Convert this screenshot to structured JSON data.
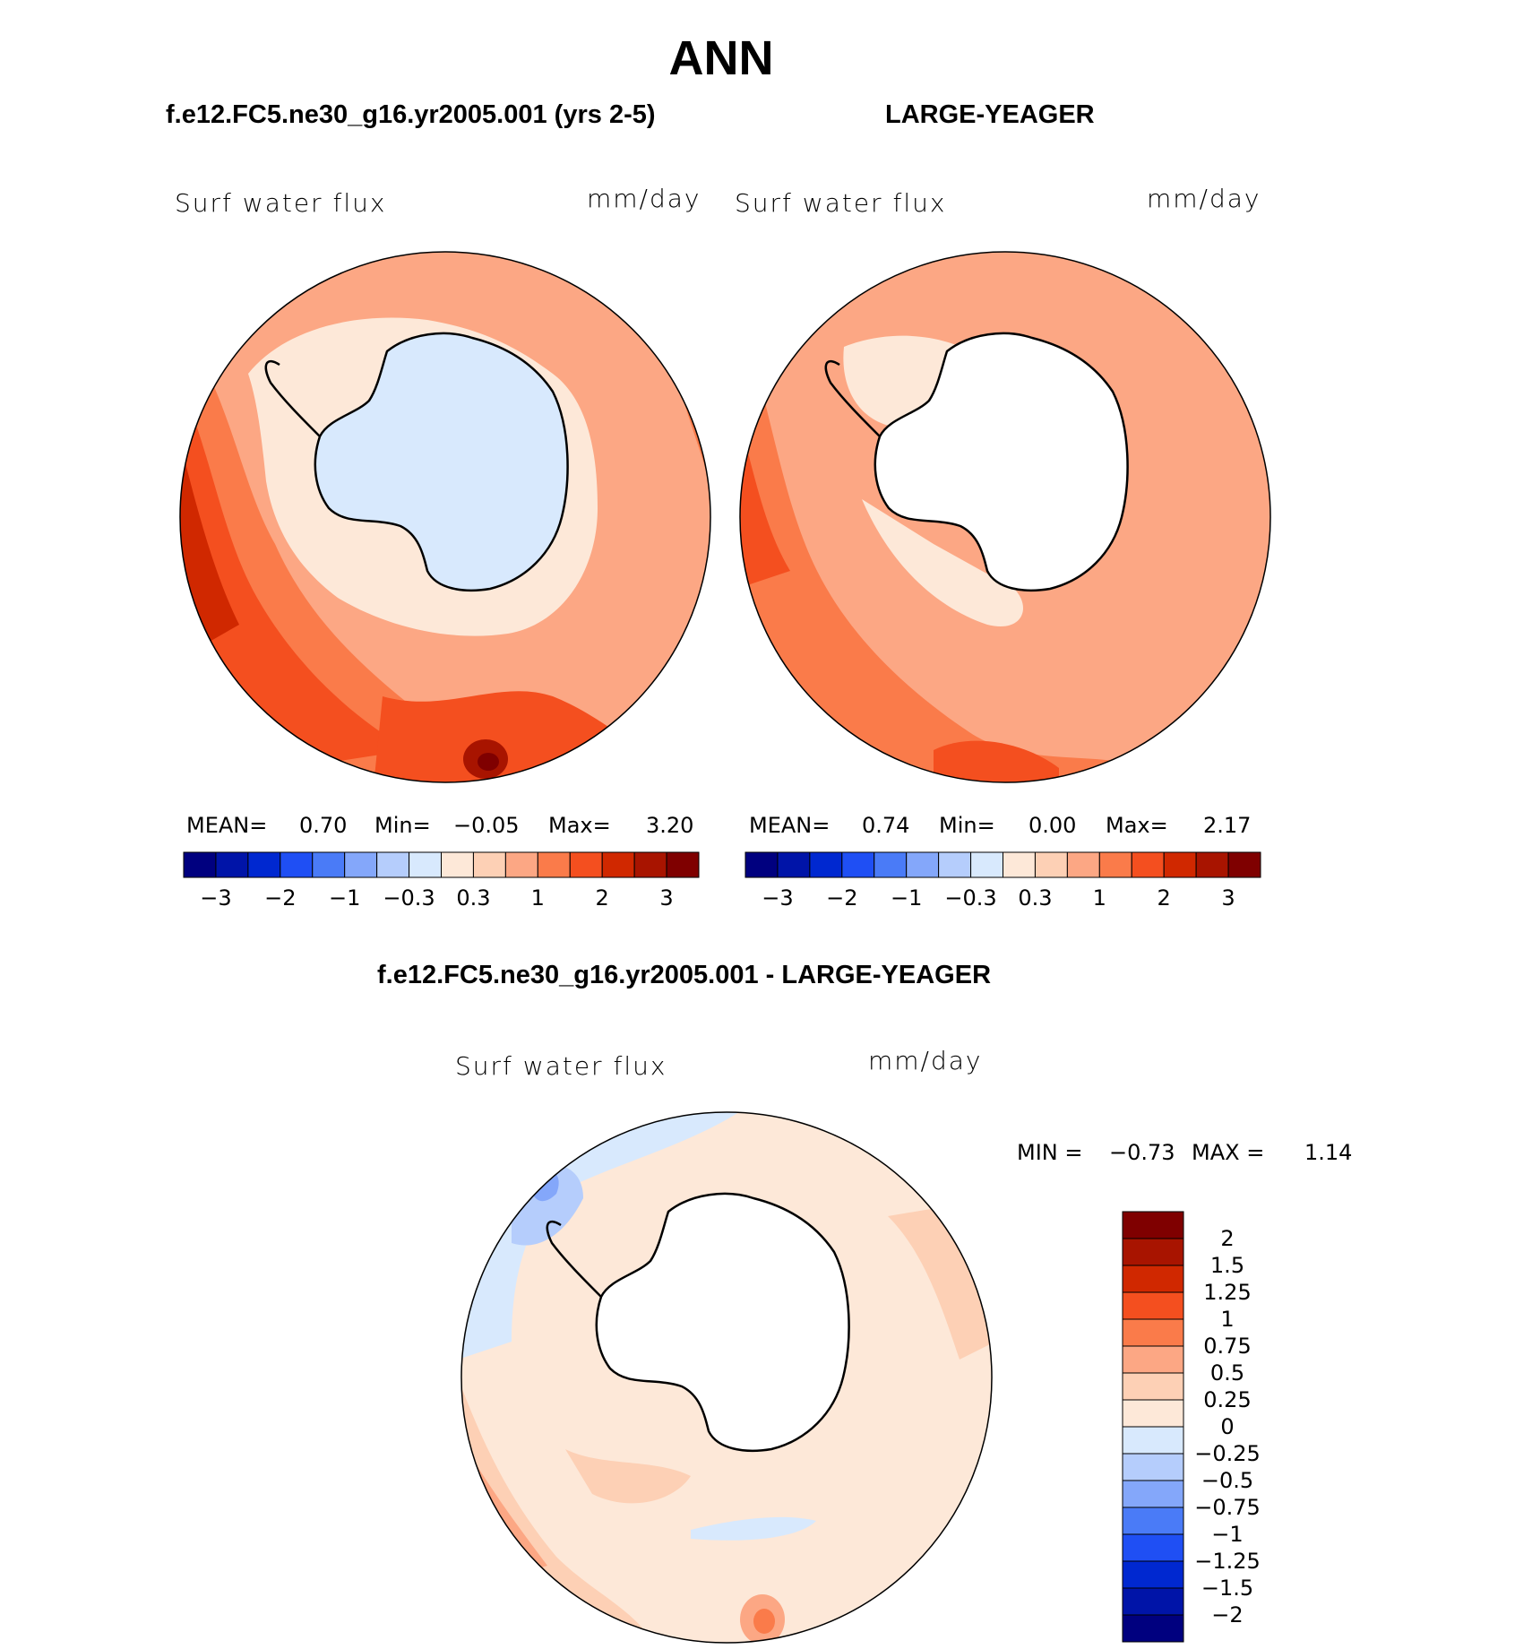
{
  "title": "ANN",
  "panels": {
    "left": {
      "title": "f.e12.FC5.ne30_g16.yr2005.001 (yrs 2-5)",
      "variable": "Surf water flux",
      "units": "mm/day",
      "mean_label": "MEAN=",
      "mean": "0.70",
      "min_label": "Min=",
      "min": "−0.05",
      "max_label": "Max=",
      "max": "3.20"
    },
    "right": {
      "title": "LARGE-YEAGER",
      "variable": "Surf water flux",
      "units": "mm/day",
      "mean_label": "MEAN=",
      "mean": "0.74",
      "min_label": "Min=",
      "min": "0.00",
      "max_label": "Max=",
      "max": "2.17"
    },
    "diff": {
      "title": "f.e12.FC5.ne30_g16.yr2005.001 - LARGE-YEAGER",
      "variable": "Surf water flux",
      "units": "mm/day",
      "min_label": "MIN =",
      "min": "−0.73",
      "max_label": "MAX =",
      "max": "1.14"
    }
  },
  "colorbar_top": {
    "colors": [
      "#00007f",
      "#0014a8",
      "#0028d0",
      "#1f4ff4",
      "#4a7bf7",
      "#84a7fa",
      "#b5cdfc",
      "#d8e9fd",
      "#fde8d8",
      "#fdd0b5",
      "#fca784",
      "#fa7b4a",
      "#f44f1f",
      "#d02800",
      "#a81400",
      "#7f0000"
    ],
    "labels": [
      "−3",
      "−2",
      "−1",
      "−0.3",
      "0.3",
      "1",
      "2",
      "3"
    ]
  },
  "colorbar_diff": {
    "colors": [
      "#7f0000",
      "#a81400",
      "#d02800",
      "#f44f1f",
      "#fa7b4a",
      "#fca784",
      "#fdd0b5",
      "#fde8d8",
      "#d8e9fd",
      "#b5cdfc",
      "#84a7fa",
      "#4a7bf7",
      "#1f4ff4",
      "#0028d0",
      "#0014a8",
      "#00007f"
    ],
    "labels": [
      "2",
      "1.5",
      "1.25",
      "1",
      "0.75",
      "0.5",
      "0.25",
      "0",
      "−0.25",
      "−0.5",
      "−0.75",
      "−1",
      "−1.25",
      "−1.5",
      "−2"
    ]
  }
}
